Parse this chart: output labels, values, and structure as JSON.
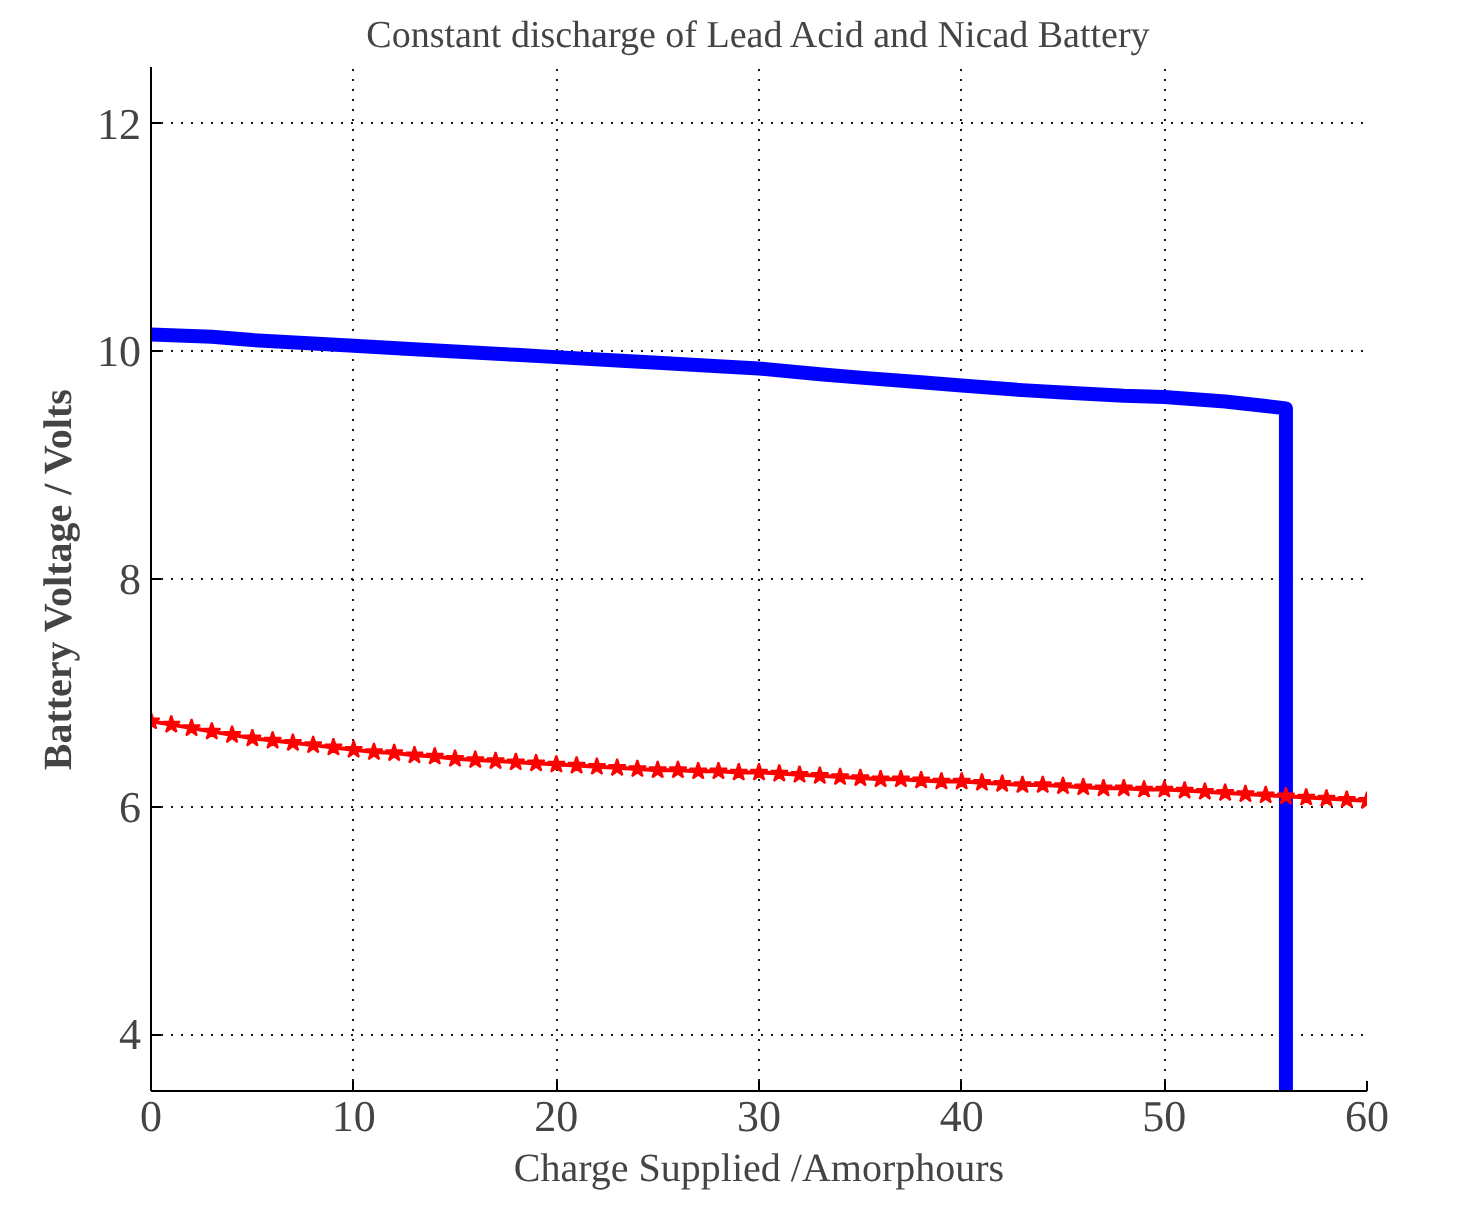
{
  "chart_data": {
    "type": "line",
    "title": "Constant discharge of Lead Acid and Nicad Battery",
    "xlabel": "Charge Supplied /Amorphours",
    "ylabel": "Battery Voltage / Volts",
    "xlim": [
      0,
      60
    ],
    "ylim": [
      3.5,
      12.5
    ],
    "xticks": [
      0,
      10,
      20,
      30,
      40,
      50,
      60
    ],
    "yticks": [
      4,
      6,
      8,
      10,
      12
    ],
    "grid": true,
    "line_style": "solid",
    "series": [
      {
        "color": "#0000ff",
        "marker": "none",
        "x": [
          0,
          3,
          5,
          8,
          10,
          13,
          15,
          18,
          20,
          23,
          25,
          28,
          30,
          33,
          35,
          38,
          40,
          43,
          45,
          48,
          50,
          53,
          55,
          56,
          56
        ],
        "values": [
          10.15,
          10.13,
          10.1,
          10.07,
          10.05,
          10.02,
          10.0,
          9.97,
          9.95,
          9.92,
          9.9,
          9.87,
          9.85,
          9.8,
          9.77,
          9.73,
          9.7,
          9.66,
          9.64,
          9.61,
          9.6,
          9.56,
          9.52,
          9.5,
          3.5
        ]
      },
      {
        "color": "#ff0000",
        "marker": "star",
        "x": [
          0,
          1,
          2,
          3,
          4,
          5,
          6,
          7,
          8,
          9,
          10,
          11,
          12,
          13,
          14,
          15,
          16,
          17,
          18,
          19,
          20,
          21,
          22,
          23,
          24,
          25,
          26,
          27,
          28,
          29,
          30,
          31,
          32,
          33,
          34,
          35,
          36,
          37,
          38,
          39,
          40,
          41,
          42,
          43,
          44,
          45,
          46,
          47,
          48,
          49,
          50,
          51,
          52,
          53,
          54,
          55,
          56,
          57,
          58,
          59,
          60
        ],
        "values": [
          6.75,
          6.72,
          6.69,
          6.66,
          6.63,
          6.6,
          6.58,
          6.56,
          6.54,
          6.52,
          6.5,
          6.48,
          6.47,
          6.45,
          6.44,
          6.42,
          6.41,
          6.4,
          6.39,
          6.38,
          6.37,
          6.36,
          6.35,
          6.34,
          6.33,
          6.32,
          6.32,
          6.31,
          6.31,
          6.3,
          6.3,
          6.29,
          6.28,
          6.27,
          6.26,
          6.25,
          6.24,
          6.24,
          6.23,
          6.22,
          6.22,
          6.21,
          6.2,
          6.19,
          6.19,
          6.18,
          6.17,
          6.16,
          6.16,
          6.15,
          6.15,
          6.14,
          6.13,
          6.12,
          6.11,
          6.1,
          6.09,
          6.08,
          6.07,
          6.06,
          6.05
        ]
      }
    ]
  }
}
